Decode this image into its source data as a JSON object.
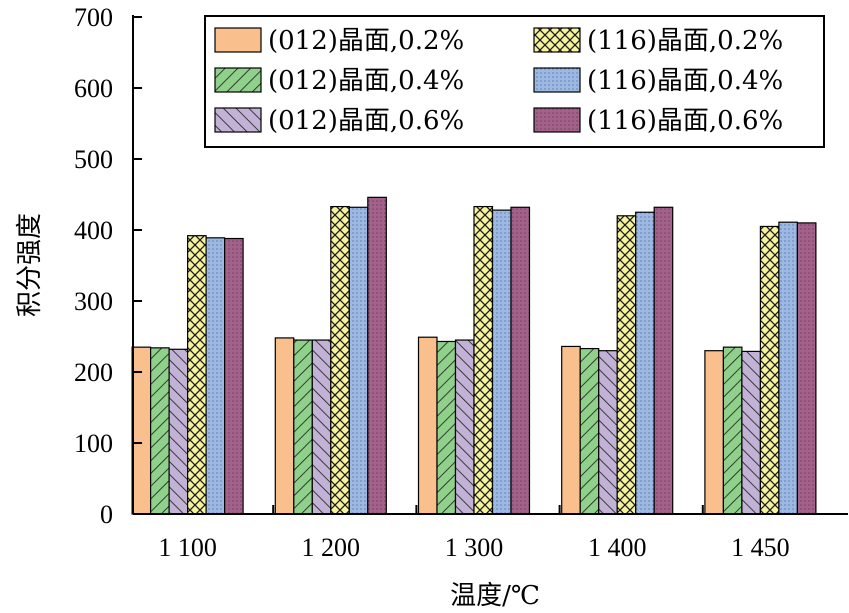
{
  "chart_data": {
    "type": "bar",
    "xlabel": "温度/℃",
    "ylabel": "积分强度",
    "ylim": [
      0,
      700
    ],
    "yticks": [
      0,
      100,
      200,
      300,
      400,
      500,
      600,
      700
    ],
    "categories": [
      "1 100",
      "1 200",
      "1 300",
      "1 400",
      "1 450"
    ],
    "grid": false,
    "legend_position": "top-right",
    "series": [
      {
        "name": "(012)晶面,0.2%",
        "color": "#F9C08E",
        "pattern": "solid",
        "values": [
          235,
          248,
          249,
          236,
          230
        ]
      },
      {
        "name": "(012)晶面,0.4%",
        "color": "#8FD08A",
        "pattern": "hatch-forward",
        "values": [
          234,
          245,
          243,
          233,
          235
        ]
      },
      {
        "name": "(012)晶面,0.6%",
        "color": "#C2B2D6",
        "pattern": "hatch-back",
        "values": [
          232,
          245,
          245,
          230,
          229
        ]
      },
      {
        "name": "(116)晶面,0.2%",
        "color": "#F7F39A",
        "pattern": "crosshatch",
        "values": [
          392,
          433,
          433,
          420,
          405
        ]
      },
      {
        "name": "(116)晶面,0.4%",
        "color": "#9DB9E3",
        "pattern": "dots",
        "values": [
          389,
          432,
          428,
          425,
          411
        ]
      },
      {
        "name": "(116)晶面,0.6%",
        "color": "#A2628A",
        "pattern": "dots",
        "values": [
          388,
          446,
          432,
          432,
          410
        ]
      }
    ]
  }
}
